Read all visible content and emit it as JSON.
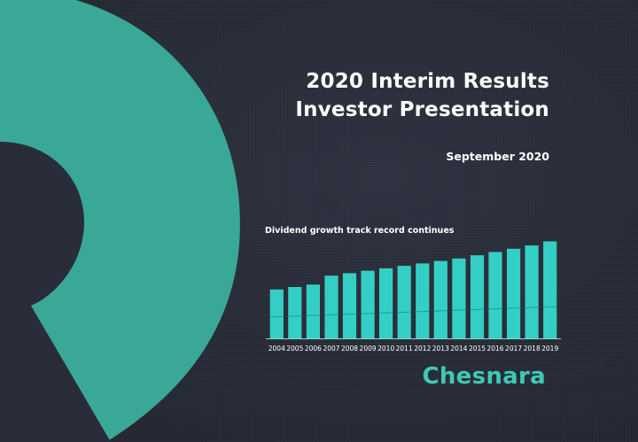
{
  "slide": {
    "title_line1": "2020 Interim Results",
    "title_line2": "Investor Presentation",
    "date": "September 2020",
    "chart_caption": "Dividend growth track record continues",
    "brand": "Chesnara"
  },
  "colors": {
    "background": "#2a2e3a",
    "accent": "#3aa896",
    "bar": "#34cfc4",
    "brand": "#3ec9b5",
    "text": "#ffffff"
  },
  "chart_data": {
    "type": "bar",
    "title": "",
    "categories": [
      "2004",
      "2005",
      "2006",
      "2007",
      "2008",
      "2009",
      "2010",
      "2011",
      "2012",
      "2013",
      "2014",
      "2015",
      "2016",
      "2017",
      "2018",
      "2019"
    ],
    "values": [
      60,
      63,
      66,
      77,
      80,
      83,
      86,
      89,
      92,
      95,
      98,
      102,
      106,
      110,
      114,
      119
    ],
    "xlabel": "",
    "ylabel": "",
    "ylim": [
      0,
      125
    ],
    "grid": false
  }
}
